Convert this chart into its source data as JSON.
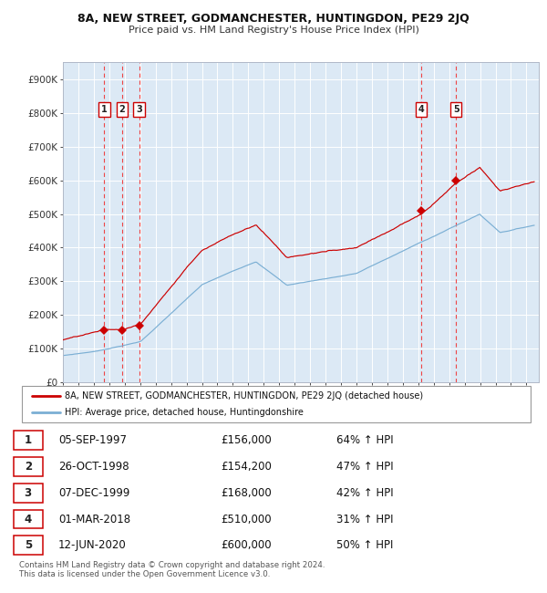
{
  "title": "8A, NEW STREET, GODMANCHESTER, HUNTINGDON, PE29 2JQ",
  "subtitle": "Price paid vs. HM Land Registry's House Price Index (HPI)",
  "plot_bg_color": "#dce9f5",
  "red_line_color": "#cc0000",
  "blue_line_color": "#7bafd4",
  "grid_color": "#ffffff",
  "axis_label_color": "#333333",
  "sale_marker_color": "#cc0000",
  "dashed_line_color": "#ee4444",
  "sale_points": [
    {
      "date_num": 1997.68,
      "price": 156000,
      "label": "1"
    },
    {
      "date_num": 1998.82,
      "price": 154200,
      "label": "2"
    },
    {
      "date_num": 1999.93,
      "price": 168000,
      "label": "3"
    },
    {
      "date_num": 2018.17,
      "price": 510000,
      "label": "4"
    },
    {
      "date_num": 2020.44,
      "price": 600000,
      "label": "5"
    }
  ],
  "legend_entries": [
    "8A, NEW STREET, GODMANCHESTER, HUNTINGDON, PE29 2JQ (detached house)",
    "HPI: Average price, detached house, Huntingdonshire"
  ],
  "table_rows": [
    {
      "num": "1",
      "date": "05-SEP-1997",
      "price": "£156,000",
      "hpi": "64% ↑ HPI"
    },
    {
      "num": "2",
      "date": "26-OCT-1998",
      "price": "£154,200",
      "hpi": "47% ↑ HPI"
    },
    {
      "num": "3",
      "date": "07-DEC-1999",
      "price": "£168,000",
      "hpi": "42% ↑ HPI"
    },
    {
      "num": "4",
      "date": "01-MAR-2018",
      "price": "£510,000",
      "hpi": "31% ↑ HPI"
    },
    {
      "num": "5",
      "date": "12-JUN-2020",
      "price": "£600,000",
      "hpi": "50% ↑ HPI"
    }
  ],
  "footer": "Contains HM Land Registry data © Crown copyright and database right 2024.\nThis data is licensed under the Open Government Licence v3.0.",
  "ylim": [
    0,
    950000
  ],
  "xlim_start": 1995.0,
  "xlim_end": 2025.8,
  "yticks": [
    0,
    100000,
    200000,
    300000,
    400000,
    500000,
    600000,
    700000,
    800000,
    900000
  ],
  "ytick_labels": [
    "£0",
    "£100K",
    "£200K",
    "£300K",
    "£400K",
    "£500K",
    "£600K",
    "£700K",
    "£800K",
    "£900K"
  ],
  "xticks": [
    1995,
    1996,
    1997,
    1998,
    1999,
    2000,
    2001,
    2002,
    2003,
    2004,
    2005,
    2006,
    2007,
    2008,
    2009,
    2010,
    2011,
    2012,
    2013,
    2014,
    2015,
    2016,
    2017,
    2018,
    2019,
    2020,
    2021,
    2022,
    2023,
    2024,
    2025
  ]
}
